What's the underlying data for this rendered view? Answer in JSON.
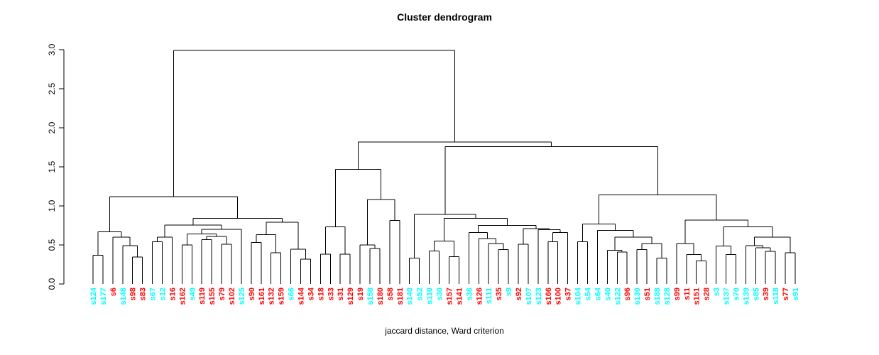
{
  "chart_data": {
    "type": "dendrogram",
    "title": "Cluster dendrogram",
    "xlabel": "jaccard distance, Ward criterion",
    "ylabel": "",
    "ylim": [
      0.0,
      3.0
    ],
    "y_ticks": [
      0.0,
      0.5,
      1.0,
      1.5,
      2.0,
      2.5,
      3.0
    ],
    "y_tick_labels": [
      "0.0",
      "0.5",
      "1.0",
      "1.5",
      "2.0",
      "2.5",
      "3.0"
    ],
    "grid": false,
    "line_color": "#000000",
    "leaf_colors": {
      "c": "#00FFFF",
      "r": "#FF0000"
    },
    "leaves": [
      [
        "s124",
        "c"
      ],
      [
        "s177",
        "c"
      ],
      [
        "s6",
        "r"
      ],
      [
        "s148",
        "c"
      ],
      [
        "s98",
        "r"
      ],
      [
        "s83",
        "r"
      ],
      [
        "s67",
        "c"
      ],
      [
        "s12",
        "c"
      ],
      [
        "s16",
        "r"
      ],
      [
        "s162",
        "r"
      ],
      [
        "s49",
        "c"
      ],
      [
        "s119",
        "r"
      ],
      [
        "s155",
        "r"
      ],
      [
        "s79",
        "r"
      ],
      [
        "s102",
        "r"
      ],
      [
        "s125",
        "c"
      ],
      [
        "s90",
        "r"
      ],
      [
        "s161",
        "r"
      ],
      [
        "s132",
        "r"
      ],
      [
        "s159",
        "r"
      ],
      [
        "s66",
        "c"
      ],
      [
        "s144",
        "r"
      ],
      [
        "s34",
        "r"
      ],
      [
        "s18",
        "r"
      ],
      [
        "s33",
        "r"
      ],
      [
        "s31",
        "r"
      ],
      [
        "s129",
        "r"
      ],
      [
        "s19",
        "r"
      ],
      [
        "s158",
        "c"
      ],
      [
        "s180",
        "r"
      ],
      [
        "s58",
        "r"
      ],
      [
        "s181",
        "r"
      ],
      [
        "s140",
        "c"
      ],
      [
        "s52",
        "c"
      ],
      [
        "s110",
        "c"
      ],
      [
        "s30",
        "c"
      ],
      [
        "s157",
        "r"
      ],
      [
        "s141",
        "r"
      ],
      [
        "s36",
        "c"
      ],
      [
        "s126",
        "r"
      ],
      [
        "s111",
        "c"
      ],
      [
        "s35",
        "r"
      ],
      [
        "s9",
        "c"
      ],
      [
        "s92",
        "r"
      ],
      [
        "s107",
        "c"
      ],
      [
        "s123",
        "c"
      ],
      [
        "s166",
        "r"
      ],
      [
        "s100",
        "r"
      ],
      [
        "s37",
        "r"
      ],
      [
        "s104",
        "c"
      ],
      [
        "s54",
        "c"
      ],
      [
        "s64",
        "c"
      ],
      [
        "s40",
        "c"
      ],
      [
        "s122",
        "c"
      ],
      [
        "s96",
        "r"
      ],
      [
        "s130",
        "c"
      ],
      [
        "s51",
        "r"
      ],
      [
        "s188",
        "c"
      ],
      [
        "s128",
        "c"
      ],
      [
        "s99",
        "r"
      ],
      [
        "s11",
        "r"
      ],
      [
        "s151",
        "r"
      ],
      [
        "s28",
        "r"
      ],
      [
        "s3",
        "c"
      ],
      [
        "s137",
        "c"
      ],
      [
        "s70",
        "c"
      ],
      [
        "s139",
        "c"
      ],
      [
        "s85",
        "c"
      ],
      [
        "s39",
        "r"
      ],
      [
        "s118",
        "c"
      ],
      [
        "s77",
        "r"
      ],
      [
        "s91",
        "c"
      ]
    ],
    "tree": {
      "h": 2.99,
      "c": [
        {
          "h": 1.12,
          "c": [
            {
              "h": 0.67,
              "c": [
                {
                  "h": 0.37,
                  "c": [
                    0,
                    1
                  ]
                },
                {
                  "h": 0.6,
                  "c": [
                    2,
                    {
                      "h": 0.49,
                      "c": [
                        3,
                        {
                          "h": 0.345,
                          "c": [
                            4,
                            5
                          ]
                        }
                      ]
                    }
                  ]
                }
              ]
            },
            {
              "h": 0.84,
              "c": [
                {
                  "h": 0.755,
                  "c": [
                    {
                      "h": 0.6,
                      "c": [
                        {
                          "h": 0.54,
                          "c": [
                            6,
                            7
                          ]
                        },
                        8
                      ]
                    },
                    {
                      "h": 0.7,
                      "c": [
                        {
                          "h": 0.64,
                          "c": [
                            {
                              "h": 0.5,
                              "c": [
                                9,
                                10
                              ]
                            },
                            {
                              "h": 0.61,
                              "c": [
                                {
                                  "h": 0.57,
                                  "c": [
                                    11,
                                    12
                                  ]
                                },
                                {
                                  "h": 0.51,
                                  "c": [
                                    13,
                                    14
                                  ]
                                }
                              ]
                            }
                          ]
                        },
                        15
                      ]
                    }
                  ]
                },
                {
                  "h": 0.79,
                  "c": [
                    {
                      "h": 0.63,
                      "c": [
                        {
                          "h": 0.53,
                          "c": [
                            16,
                            17
                          ]
                        },
                        {
                          "h": 0.4,
                          "c": [
                            18,
                            19
                          ]
                        }
                      ]
                    },
                    {
                      "h": 0.445,
                      "c": [
                        20,
                        {
                          "h": 0.32,
                          "c": [
                            21,
                            22
                          ]
                        }
                      ]
                    }
                  ]
                }
              ]
            }
          ]
        },
        {
          "h": 1.82,
          "c": [
            {
              "h": 1.47,
              "c": [
                {
                  "h": 0.73,
                  "c": [
                    {
                      "h": 0.38,
                      "c": [
                        23,
                        24
                      ]
                    },
                    {
                      "h": 0.38,
                      "c": [
                        25,
                        26
                      ]
                    }
                  ]
                },
                {
                  "h": 1.08,
                  "c": [
                    {
                      "h": 0.5,
                      "c": [
                        27,
                        {
                          "h": 0.455,
                          "c": [
                            28,
                            29
                          ]
                        }
                      ]
                    },
                    {
                      "h": 0.815,
                      "c": [
                        30,
                        31
                      ]
                    }
                  ]
                }
              ]
            },
            {
              "h": 1.76,
              "c": [
                {
                  "h": 0.89,
                  "c": [
                    {
                      "h": 0.33,
                      "c": [
                        32,
                        33
                      ]
                    },
                    {
                      "h": 0.84,
                      "c": [
                        {
                          "h": 0.55,
                          "c": [
                            {
                              "h": 0.425,
                              "c": [
                                34,
                                35
                              ]
                            },
                            {
                              "h": 0.348,
                              "c": [
                                36,
                                37
                              ]
                            }
                          ]
                        },
                        {
                          "h": 0.75,
                          "c": [
                            {
                              "h": 0.66,
                              "c": [
                                38,
                                {
                                  "h": 0.58,
                                  "c": [
                                    39,
                                    {
                                      "h": 0.52,
                                      "c": [
                                        40,
                                        {
                                          "h": 0.44,
                                          "c": [
                                            41,
                                            42
                                          ]
                                        }
                                      ]
                                    }
                                  ]
                                }
                              ]
                            },
                            {
                              "h": 0.71,
                              "c": [
                                {
                                  "h": 0.51,
                                  "c": [
                                    43,
                                    44
                                  ]
                                },
                                {
                                  "h": 0.695,
                                  "c": [
                                    45,
                                    {
                                      "h": 0.66,
                                      "c": [
                                        {
                                          "h": 0.54,
                                          "c": [
                                            46,
                                            47
                                          ]
                                        },
                                        48
                                      ]
                                    }
                                  ]
                                }
                              ]
                            }
                          ]
                        }
                      ]
                    }
                  ]
                },
                {
                  "h": 1.14,
                  "c": [
                    {
                      "h": 0.77,
                      "c": [
                        {
                          "h": 0.54,
                          "c": [
                            49,
                            50
                          ]
                        },
                        {
                          "h": 0.685,
                          "c": [
                            51,
                            {
                              "h": 0.6,
                              "c": [
                                {
                                  "h": 0.43,
                                  "c": [
                                    52,
                                    {
                                      "h": 0.41,
                                      "c": [
                                        53,
                                        54
                                      ]
                                    }
                                  ]
                                },
                                {
                                  "h": 0.52,
                                  "c": [
                                    {
                                      "h": 0.44,
                                      "c": [
                                        55,
                                        56
                                      ]
                                    },
                                    {
                                      "h": 0.33,
                                      "c": [
                                        57,
                                        58
                                      ]
                                    }
                                  ]
                                }
                              ]
                            }
                          ]
                        }
                      ]
                    },
                    {
                      "h": 0.82,
                      "c": [
                        {
                          "h": 0.518,
                          "c": [
                            59,
                            {
                              "h": 0.379,
                              "c": [
                                60,
                                {
                                  "h": 0.297,
                                  "c": [
                                    61,
                                    62
                                  ]
                                }
                              ]
                            }
                          ]
                        },
                        {
                          "h": 0.73,
                          "c": [
                            {
                              "h": 0.488,
                              "c": [
                                63,
                                {
                                  "h": 0.379,
                                  "c": [
                                    64,
                                    65
                                  ]
                                }
                              ]
                            },
                            {
                              "h": 0.6,
                              "c": [
                                {
                                  "h": 0.49,
                                  "c": [
                                    66,
                                    {
                                      "h": 0.464,
                                      "c": [
                                        67,
                                        {
                                          "h": 0.42,
                                          "c": [
                                            68,
                                            69
                                          ]
                                        }
                                      ]
                                    }
                                  ]
                                },
                                {
                                  "h": 0.4,
                                  "c": [
                                    70,
                                    71
                                  ]
                                }
                              ]
                            }
                          ]
                        }
                      ]
                    }
                  ]
                }
              ]
            }
          ]
        }
      ]
    }
  }
}
